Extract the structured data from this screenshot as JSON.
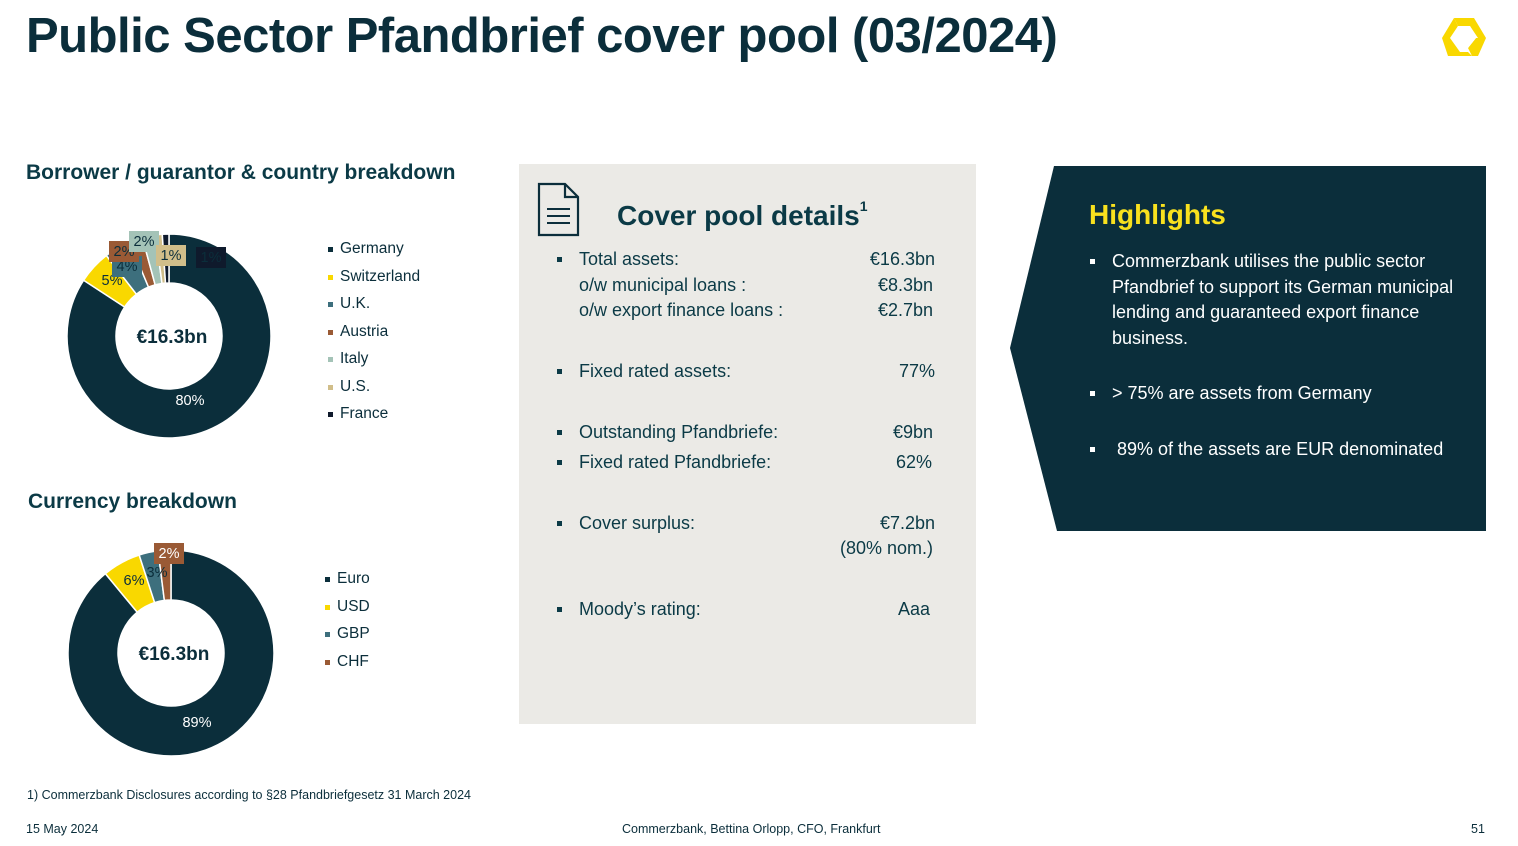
{
  "slide": {
    "title": "Public Sector Pfandbrief cover pool (03/2024)",
    "footnote": "1)   Commerzbank Disclosures according to §28 Pfandbriefgesetz 31 March 2024",
    "footer_date": "15 May 2024",
    "footer_center": "Commerzbank, Bettina Orlopp, CFO, Frankfurt",
    "page_number": "51",
    "logo_icon": "commerzbank-ribbon-logo"
  },
  "colors": {
    "dark_teal": "#0b2e3b",
    "yellow": "#f9d800",
    "steel": "#3d6f7d",
    "brown": "#9a5a35",
    "pale_green": "#a4c3b7",
    "sand": "#d1be8a",
    "navy": "#0f1a2c",
    "panel_grey": "#ebeae6",
    "highlight_yellow": "#f9e11e"
  },
  "chart_data": [
    {
      "type": "pie",
      "title": "Borrower / guarantor & country breakdown",
      "center_label": "€16.3bn",
      "categories": [
        "Germany",
        "Switzerland",
        "U.K.",
        "Austria",
        "Italy",
        "U.S.",
        "France"
      ],
      "values": [
        80,
        5,
        4,
        2,
        2,
        1,
        1
      ],
      "data_labels": [
        "80%",
        "5%",
        "4%",
        "2%",
        "2%",
        "1%",
        "1%"
      ],
      "colors": [
        "#0b2e3b",
        "#f9d800",
        "#3d6f7d",
        "#9a5a35",
        "#a4c3b7",
        "#d1be8a",
        "#0f1a2c"
      ],
      "legend": "right"
    },
    {
      "type": "pie",
      "title": "Currency breakdown",
      "center_label": "€16.3bn",
      "categories": [
        "Euro",
        "USD",
        "GBP",
        "CHF"
      ],
      "values": [
        89,
        6,
        3,
        2
      ],
      "data_labels": [
        "89%",
        "6%",
        "3%",
        "2%"
      ],
      "colors": [
        "#0b2e3b",
        "#f9d800",
        "#3d6f7d",
        "#9a5a35"
      ],
      "legend": "right"
    }
  ],
  "cover_pool": {
    "title": "Cover pool details",
    "title_sup": "1",
    "icon": "document-icon",
    "rows": [
      {
        "bullet": true,
        "label": "Total assets:",
        "value": "€16.3bn"
      },
      {
        "bullet": false,
        "label": "o/w municipal loans :",
        "value": "€8.3bn"
      },
      {
        "bullet": false,
        "label": "o/w export finance loans :",
        "value": "€2.7bn"
      },
      {
        "bullet": true,
        "label": "Fixed rated assets:",
        "value": "77%"
      },
      {
        "bullet": true,
        "label": "Outstanding Pfandbriefe:",
        "value": "€9bn"
      },
      {
        "bullet": true,
        "label": "Fixed rated Pfandbriefe:",
        "value": "62%"
      },
      {
        "bullet": true,
        "label": "Cover surplus:",
        "value": "€7.2bn"
      },
      {
        "bullet": false,
        "label": "",
        "value": "(80% nom.)"
      },
      {
        "bullet": true,
        "label": "Moody’s rating:",
        "value": "Aaa"
      }
    ]
  },
  "highlights": {
    "title": "Highlights",
    "items": [
      "Commerzbank utilises the public sector Pfandbrief to support its German municipal lending and  guaranteed export finance business.",
      "> 75% are assets from Germany",
      " 89% of the assets are EUR denominated"
    ]
  }
}
